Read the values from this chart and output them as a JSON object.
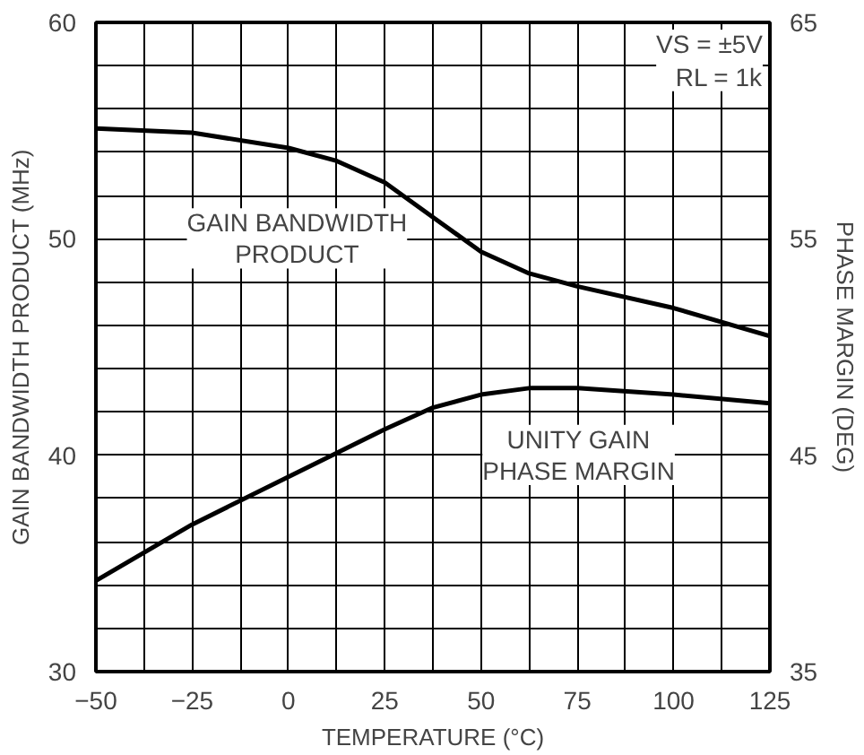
{
  "chart_data": {
    "type": "line",
    "xlabel": "TEMPERATURE (°C)",
    "ylabel": "GAIN BANDWIDTH PRODUCT (MHz)",
    "y2label": "PHASE MARGIN (DEG)",
    "x": [
      -50,
      -25,
      0,
      12.5,
      25,
      37.5,
      50,
      62.5,
      75,
      100,
      125
    ],
    "series": [
      {
        "color": "#000000",
        "values": [
          55.1,
          54.9,
          54.2,
          53.6,
          52.6,
          51.0,
          49.4,
          48.4,
          47.8,
          46.8,
          45.5
        ]
      },
      {
        "color": "#000000",
        "axis": "y2",
        "values": [
          39.2,
          41.8,
          44.0,
          45.1,
          46.2,
          47.2,
          47.8,
          48.1,
          48.1,
          47.8,
          47.4
        ]
      }
    ],
    "xlim": [
      -50,
      125
    ],
    "xticks": [
      -50,
      {
        "value": -37.5,
        "label": null
      },
      -25,
      {
        "value": -12.5,
        "label": null
      },
      0,
      {
        "value": 12.5,
        "label": null
      },
      25,
      {
        "value": 37.5,
        "label": null
      },
      50,
      {
        "value": 62.5,
        "label": null
      },
      75,
      {
        "value": 87.5,
        "label": null
      },
      100,
      {
        "value": 112.5,
        "label": null
      },
      125
    ],
    "ylim": [
      30,
      60
    ],
    "yticks": [
      30,
      {
        "value": 32,
        "label": null
      },
      {
        "value": 34,
        "label": null
      },
      {
        "value": 36,
        "label": null
      },
      {
        "value": 38,
        "label": null
      },
      40,
      {
        "value": 42,
        "label": null
      },
      {
        "value": 44,
        "label": null
      },
      {
        "value": 46,
        "label": null
      },
      {
        "value": 48,
        "label": null
      },
      50,
      {
        "value": 52,
        "label": null
      },
      {
        "value": 54,
        "label": null
      },
      {
        "value": 56,
        "label": null
      },
      {
        "value": 58,
        "label": null
      },
      60
    ],
    "y2lim": [
      35,
      65
    ],
    "y2ticks": [
      35,
      45,
      55,
      65
    ],
    "grid": true,
    "marker": "none",
    "line_style": "solid",
    "annotations": [
      "GAIN BANDWIDTH\nPRODUCT",
      "UNITY GAIN\nPHASE MARGIN",
      "VS = ±5V\nRL = 1k"
    ]
  }
}
